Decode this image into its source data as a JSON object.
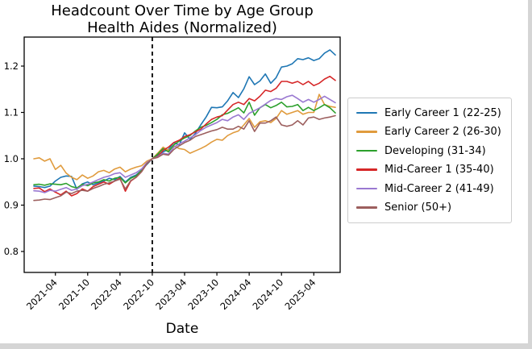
{
  "chart_data": {
    "type": "line",
    "title": "Headcount Over Time by Age Group",
    "subtitle": "Health Aides (Normalized)",
    "xlabel": "Date",
    "ylabel": "",
    "grid": false,
    "legend_position": "center right, outside axes",
    "y_ticks": [
      0.8,
      0.9,
      1.0,
      1.1,
      1.2
    ],
    "ylim": [
      0.755,
      1.263
    ],
    "x_tick_labels": [
      "2021-04",
      "2021-10",
      "2022-04",
      "2022-10",
      "2023-04",
      "2023-10",
      "2024-04",
      "2024-10",
      "2025-04"
    ],
    "x_tick_rotation": 45,
    "months": [
      "2020-12",
      "2021-01",
      "2021-02",
      "2021-03",
      "2021-04",
      "2021-05",
      "2021-06",
      "2021-07",
      "2021-08",
      "2021-09",
      "2021-10",
      "2021-11",
      "2021-12",
      "2022-01",
      "2022-02",
      "2022-03",
      "2022-04",
      "2022-05",
      "2022-06",
      "2022-07",
      "2022-08",
      "2022-09",
      "2022-10",
      "2022-11",
      "2022-12",
      "2023-01",
      "2023-02",
      "2023-03",
      "2023-04",
      "2023-05",
      "2023-06",
      "2023-07",
      "2023-08",
      "2023-09",
      "2023-10",
      "2023-11",
      "2023-12",
      "2024-01",
      "2024-02",
      "2024-03",
      "2024-04",
      "2024-05",
      "2024-06",
      "2024-07",
      "2024-08",
      "2024-09",
      "2024-10",
      "2024-11",
      "2024-12",
      "2025-01",
      "2025-02",
      "2025-03",
      "2025-04",
      "2025-05",
      "2025-06",
      "2025-07",
      "2025-08"
    ],
    "vline": {
      "month": "2022-10",
      "style": "dashed",
      "color": "#000000",
      "meaning": "normalization point (all series = 1.0)"
    },
    "series": [
      {
        "name": "Early Career 1 (22-25)",
        "color": "#1f77b4",
        "values": [
          0.941,
          0.94,
          0.938,
          0.941,
          0.952,
          0.96,
          0.963,
          0.962,
          0.934,
          0.946,
          0.95,
          0.944,
          0.948,
          0.952,
          0.958,
          0.955,
          0.962,
          0.95,
          0.96,
          0.965,
          0.975,
          0.988,
          1.0,
          1.008,
          1.015,
          1.02,
          1.035,
          1.03,
          1.056,
          1.042,
          1.055,
          1.073,
          1.09,
          1.111,
          1.11,
          1.112,
          1.125,
          1.143,
          1.132,
          1.151,
          1.177,
          1.16,
          1.168,
          1.183,
          1.163,
          1.175,
          1.198,
          1.2,
          1.205,
          1.216,
          1.214,
          1.218,
          1.212,
          1.216,
          1.228,
          1.235,
          1.224
        ]
      },
      {
        "name": "Early Career 2 (26-30)",
        "color": "#e09b3d",
        "values": [
          1.0,
          1.002,
          0.995,
          1.0,
          0.977,
          0.986,
          0.969,
          0.96,
          0.955,
          0.965,
          0.958,
          0.963,
          0.972,
          0.975,
          0.97,
          0.978,
          0.982,
          0.972,
          0.978,
          0.982,
          0.985,
          0.995,
          1.0,
          1.012,
          1.025,
          1.018,
          1.028,
          1.022,
          1.02,
          1.012,
          1.017,
          1.022,
          1.028,
          1.036,
          1.042,
          1.04,
          1.05,
          1.056,
          1.06,
          1.073,
          1.087,
          1.068,
          1.08,
          1.082,
          1.078,
          1.087,
          1.104,
          1.096,
          1.1,
          1.104,
          1.096,
          1.1,
          1.1,
          1.139,
          1.117,
          1.113,
          1.111
        ]
      },
      {
        "name": "Developing (31-34)",
        "color": "#2ca02c",
        "values": [
          0.944,
          0.945,
          0.943,
          0.946,
          0.945,
          0.944,
          0.947,
          0.94,
          0.937,
          0.945,
          0.942,
          0.948,
          0.95,
          0.955,
          0.952,
          0.958,
          0.96,
          0.948,
          0.958,
          0.963,
          0.975,
          0.99,
          1.0,
          1.01,
          1.022,
          1.015,
          1.03,
          1.038,
          1.045,
          1.05,
          1.06,
          1.068,
          1.072,
          1.078,
          1.085,
          1.095,
          1.098,
          1.104,
          1.11,
          1.099,
          1.122,
          1.094,
          1.11,
          1.117,
          1.11,
          1.115,
          1.122,
          1.112,
          1.113,
          1.117,
          1.104,
          1.111,
          1.104,
          1.11,
          1.117,
          1.11,
          1.099
        ]
      },
      {
        "name": "Mid-Career 1 (35-40)",
        "color": "#d62728",
        "values": [
          0.936,
          0.937,
          0.929,
          0.935,
          0.928,
          0.922,
          0.93,
          0.92,
          0.925,
          0.935,
          0.93,
          0.94,
          0.945,
          0.95,
          0.945,
          0.952,
          0.958,
          0.93,
          0.952,
          0.96,
          0.972,
          0.99,
          1.0,
          1.005,
          1.018,
          1.025,
          1.035,
          1.04,
          1.048,
          1.052,
          1.058,
          1.064,
          1.075,
          1.085,
          1.09,
          1.093,
          1.105,
          1.117,
          1.122,
          1.117,
          1.13,
          1.125,
          1.135,
          1.148,
          1.145,
          1.152,
          1.167,
          1.167,
          1.163,
          1.167,
          1.16,
          1.167,
          1.158,
          1.163,
          1.172,
          1.178,
          1.169
        ]
      },
      {
        "name": "Mid-Career 2 (41-49)",
        "color": "#9a79d1",
        "values": [
          0.931,
          0.93,
          0.927,
          0.932,
          0.93,
          0.934,
          0.938,
          0.932,
          0.935,
          0.942,
          0.945,
          0.95,
          0.955,
          0.96,
          0.963,
          0.968,
          0.97,
          0.96,
          0.965,
          0.97,
          0.978,
          0.992,
          1.0,
          1.004,
          1.012,
          1.01,
          1.025,
          1.032,
          1.038,
          1.045,
          1.052,
          1.061,
          1.068,
          1.073,
          1.078,
          1.085,
          1.082,
          1.09,
          1.095,
          1.085,
          1.098,
          1.104,
          1.11,
          1.118,
          1.126,
          1.13,
          1.128,
          1.134,
          1.137,
          1.13,
          1.122,
          1.128,
          1.122,
          1.128,
          1.135,
          1.128,
          1.121
        ]
      },
      {
        "name": "Senior (50+)",
        "color": "#9c5f5e",
        "values": [
          0.91,
          0.911,
          0.913,
          0.912,
          0.916,
          0.92,
          0.928,
          0.925,
          0.93,
          0.932,
          0.93,
          0.936,
          0.94,
          0.945,
          0.948,
          0.952,
          0.956,
          0.935,
          0.953,
          0.96,
          0.972,
          0.99,
          1.0,
          1.003,
          1.01,
          1.008,
          1.02,
          1.028,
          1.035,
          1.04,
          1.048,
          1.052,
          1.056,
          1.06,
          1.063,
          1.068,
          1.064,
          1.064,
          1.07,
          1.064,
          1.082,
          1.059,
          1.077,
          1.077,
          1.082,
          1.09,
          1.073,
          1.07,
          1.073,
          1.082,
          1.073,
          1.088,
          1.09,
          1.085,
          1.088,
          1.09,
          1.093
        ]
      }
    ]
  }
}
